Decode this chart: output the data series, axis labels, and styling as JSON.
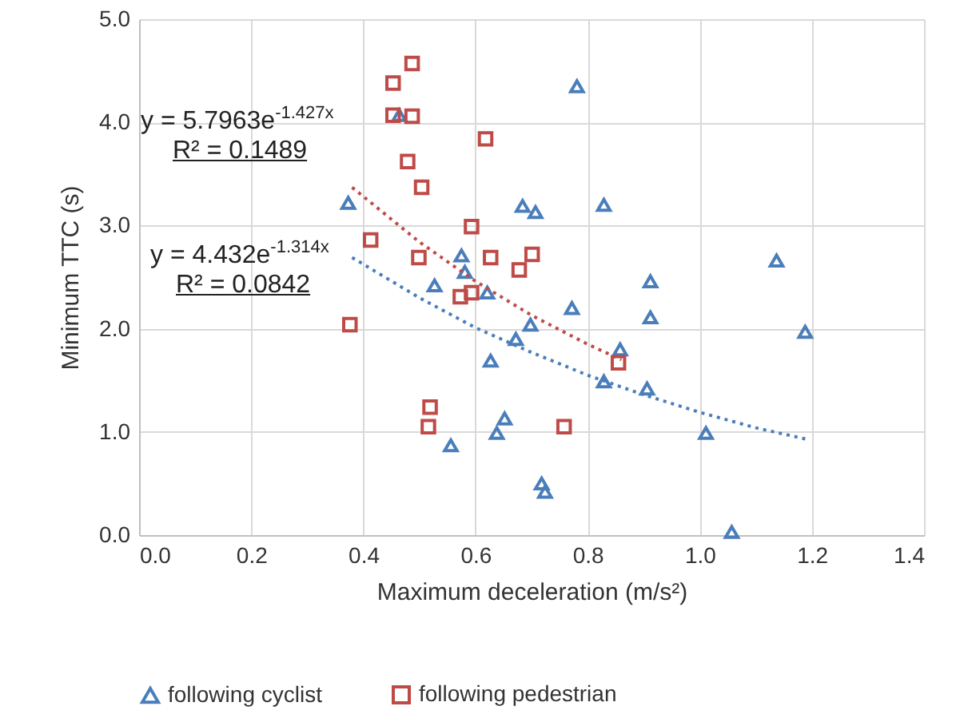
{
  "chart_data": {
    "type": "scatter",
    "xlabel": "Maximum deceleration (m/s²)",
    "ylabel": "Minimum TTC (s)",
    "xlim": [
      0,
      1.4
    ],
    "xticks": [
      {
        "value": 0,
        "label": "0.0"
      },
      {
        "value": 0.2,
        "label": "0.2"
      },
      {
        "value": 0.4,
        "label": "0.4"
      },
      {
        "value": 0.6,
        "label": "0.6"
      },
      {
        "value": 0.8,
        "label": "0.8"
      },
      {
        "value": 1,
        "label": "1.0"
      },
      {
        "value": 1.2,
        "label": "1.2"
      },
      {
        "value": 1.4,
        "label": "1.4"
      }
    ],
    "ylim": [
      0,
      5
    ],
    "yticks": [
      {
        "value": 0,
        "label": "0.0"
      },
      {
        "value": 1,
        "label": "1.0"
      },
      {
        "value": 2,
        "label": "2.0"
      },
      {
        "value": 3,
        "label": "3.0"
      },
      {
        "value": 4,
        "label": "4.0"
      },
      {
        "value": 5,
        "label": "5.0"
      }
    ],
    "grid": true,
    "legend": "bottom",
    "annotations": [
      "y = 5.7963e$^{-1.427x}$",
      "R² = 0.1489",
      "y = 4.432e$^{-1.314x}$",
      "R² = 0.0842"
    ],
    "series": [
      {
        "name": "following cyclist",
        "marker": "triangle",
        "color": "#4a7ebb",
        "x": [
          0.373,
          0.464,
          0.527,
          0.575,
          0.581,
          0.621,
          0.627,
          0.672,
          0.684,
          0.707,
          0.698,
          0.781,
          0.772,
          0.829,
          0.858,
          0.829,
          0.906,
          0.912,
          0.912,
          1.011,
          1.057,
          1.137,
          1.188,
          0.652,
          0.638,
          0.556,
          0.718,
          0.724
        ],
        "values": [
          3.22,
          4.07,
          2.42,
          2.71,
          2.55,
          2.35,
          1.69,
          1.9,
          3.19,
          3.13,
          2.04,
          4.35,
          2.2,
          3.2,
          1.8,
          1.49,
          1.42,
          2.46,
          2.11,
          0.99,
          0.03,
          2.66,
          1.97,
          1.13,
          0.99,
          0.87,
          0.5,
          0.42
        ]
      },
      {
        "name": "following pedestrian",
        "marker": "square",
        "color": "#be4b48",
        "x": [
          0.453,
          0.487,
          0.453,
          0.487,
          0.618,
          0.479,
          0.504,
          0.413,
          0.593,
          0.499,
          0.627,
          0.678,
          0.701,
          0.573,
          0.593,
          0.376,
          0.519,
          0.516,
          0.758,
          0.855
        ],
        "values": [
          4.38,
          4.57,
          4.07,
          4.06,
          3.84,
          3.62,
          3.37,
          2.86,
          2.99,
          2.69,
          2.69,
          2.57,
          2.72,
          2.31,
          2.35,
          2.04,
          1.24,
          1.05,
          1.05,
          1.67
        ]
      },
      {
        "type": "line",
        "line_style": "dotted",
        "color": "#4a7ebb",
        "x": [
          0.38,
          0.5,
          0.6,
          0.7,
          0.8,
          0.9,
          1.0,
          1.1,
          1.19
        ],
        "values": [
          2.69,
          2.3,
          2.01,
          1.77,
          1.55,
          1.36,
          1.19,
          1.04,
          0.93
        ]
      },
      {
        "type": "line",
        "line_style": "dotted",
        "color": "#be4b48",
        "x": [
          0.38,
          0.5,
          0.6,
          0.7,
          0.8,
          0.86
        ],
        "values": [
          3.37,
          2.84,
          2.46,
          2.13,
          1.85,
          1.7
        ]
      }
    ]
  }
}
